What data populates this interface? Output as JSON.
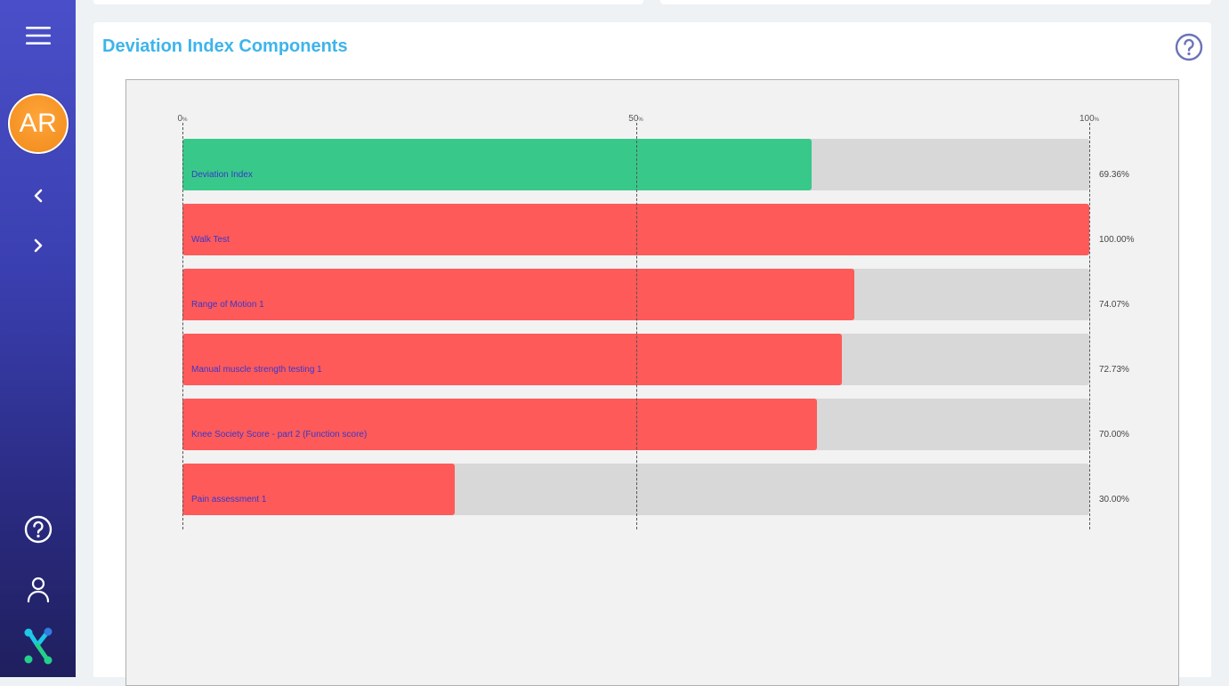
{
  "sidebar": {
    "menu_icon": "hamburger-icon",
    "avatar_initials": "AR",
    "prev_icon": "chevron-left-icon",
    "next_icon": "chevron-right-icon",
    "help_icon": "question-circle-icon",
    "profile_icon": "user-icon",
    "logo_icon": "app-logo-icon"
  },
  "panel": {
    "title": "Deviation Index Components",
    "help_icon": "question-circle-icon"
  },
  "colors": {
    "title": "#3db4ec",
    "good": "#38c98a",
    "bad": "#ff5a5a",
    "track": "#d8d8d8",
    "label": "#3a36c8"
  },
  "chart_data": {
    "type": "bar",
    "orientation": "horizontal",
    "xlim": [
      0,
      100
    ],
    "ticks": [
      {
        "value": 0,
        "label": "0",
        "unit": "%"
      },
      {
        "value": 50,
        "label": "50",
        "unit": "%"
      },
      {
        "value": 100,
        "label": "100",
        "unit": "%"
      }
    ],
    "categories": [
      "Deviation Index",
      "Walk Test",
      "Range of Motion 1",
      "Manual muscle strength testing 1",
      "Knee Society Score - part 2 (Function score)",
      "Pain assessment 1"
    ],
    "values": [
      69.36,
      100.0,
      74.07,
      72.73,
      70.0,
      30.0
    ],
    "value_labels": [
      "69.36%",
      "100.00%",
      "74.07%",
      "72.73%",
      "70.00%",
      "30.00%"
    ],
    "status": [
      "good",
      "bad",
      "bad",
      "bad",
      "bad",
      "bad"
    ],
    "grid": true
  }
}
